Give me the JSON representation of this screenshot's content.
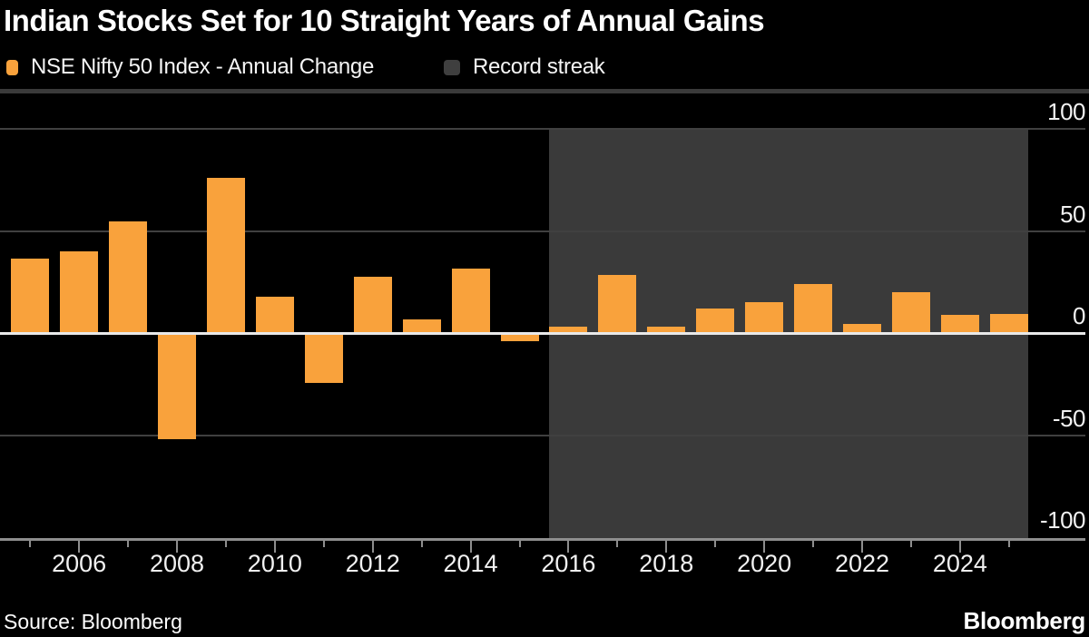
{
  "header": {
    "title": "Indian Stocks Set for 10 Straight Years of Annual Gains",
    "legend": [
      {
        "label": "NSE Nifty 50 Index - Annual Change",
        "swatch_color": "#F9A23C"
      },
      {
        "label": "Record streak",
        "swatch_color": "#3F3F3F"
      }
    ]
  },
  "footer": {
    "source": "Source: Bloomberg",
    "brand": "Bloomberg"
  },
  "colors": {
    "background": "#000000",
    "bar": "#F9A23C",
    "record_streak_region": "#3A3A3A",
    "top_strip": "#3A3A3A",
    "gridline": "#404040",
    "zero_line": "#E9E9E9",
    "axis": "#8E8E8E",
    "tick_label": "#F1F1F1"
  },
  "chart_data": {
    "type": "bar",
    "title": "Indian Stocks Set for 10 Straight Years of Annual Gains",
    "units": "percent annual change",
    "series": [
      {
        "name": "NSE Nifty 50 Index - Annual Change",
        "color": "#F9A23C",
        "x": [
          2005,
          2006,
          2007,
          2008,
          2009,
          2010,
          2011,
          2012,
          2013,
          2014,
          2015,
          2016,
          2017,
          2018,
          2019,
          2020,
          2021,
          2022,
          2023,
          2024,
          2025
        ],
        "values": [
          36.3,
          39.8,
          54.8,
          -51.8,
          75.8,
          17.9,
          -24.6,
          27.7,
          6.8,
          31.4,
          -4.1,
          3.0,
          28.6,
          3.2,
          12.0,
          14.9,
          24.1,
          4.3,
          20.0,
          8.8,
          9.2
        ]
      }
    ],
    "highlight_region": {
      "label": "Record streak",
      "from_year": 2016,
      "to_year": 2025,
      "color": "#3A3A3A"
    },
    "yticks": [
      100,
      50,
      0,
      -50,
      -100
    ],
    "ylim": [
      -101,
      123
    ],
    "xticks_labeled": [
      2006,
      2008,
      2010,
      2012,
      2014,
      2016,
      2018,
      2020,
      2022,
      2024
    ],
    "xticks_minor": [
      2005,
      2007,
      2009,
      2011,
      2013,
      2015,
      2017,
      2019,
      2021,
      2023,
      2025
    ],
    "grid": true,
    "zero_line": true,
    "legend_position": "top-left",
    "y_axis_side": "right"
  }
}
